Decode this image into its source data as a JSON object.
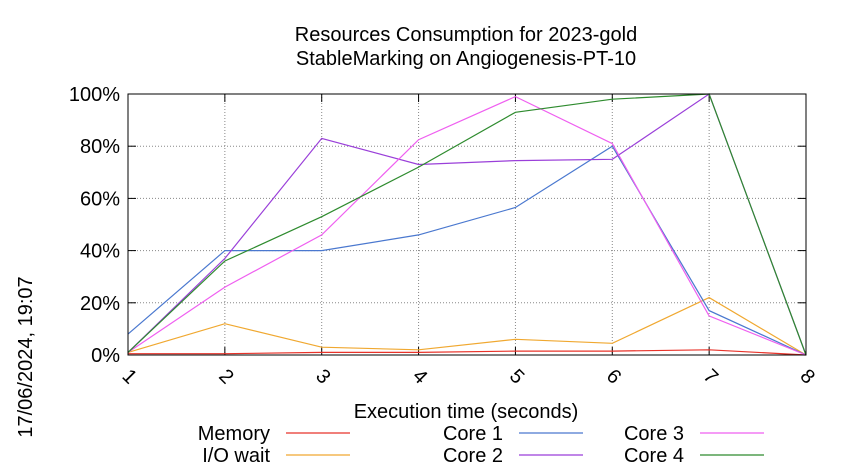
{
  "chart_data": {
    "type": "line",
    "title": "Resources Consumption for 2023-gold",
    "subtitle": "StableMarking on Angiogenesis-PT-10",
    "xlabel": "Execution time (seconds)",
    "ylabel": "",
    "side_label": "17/06/2024, 19:07",
    "x": [
      1,
      2,
      3,
      4,
      5,
      6,
      7,
      8
    ],
    "x_tick_labels": [
      "1",
      "2",
      "3",
      "4",
      "5",
      "6",
      "7",
      "8"
    ],
    "xlim": [
      1,
      8
    ],
    "ylim": [
      0,
      100
    ],
    "y_ticks": [
      0,
      20,
      40,
      60,
      80,
      100
    ],
    "y_tick_labels": [
      "0%",
      "20%",
      "40%",
      "60%",
      "80%",
      "100%"
    ],
    "grid": true,
    "legend_position": "bottom",
    "series": [
      {
        "name": "Memory",
        "color": "#e8332a",
        "values": [
          0.5,
          0.5,
          1,
          1,
          1.5,
          1.5,
          2,
          0
        ]
      },
      {
        "name": "I/O wait",
        "color": "#f0a830",
        "values": [
          1,
          12,
          3,
          2,
          6,
          4.5,
          22,
          0
        ]
      },
      {
        "name": "Core 1",
        "color": "#4a78cf",
        "values": [
          8,
          40,
          40,
          46,
          56.5,
          80,
          17,
          0
        ]
      },
      {
        "name": "Core 2",
        "color": "#9a3fd9",
        "values": [
          1,
          37,
          83,
          73,
          74.5,
          75,
          100,
          0
        ]
      },
      {
        "name": "Core 3",
        "color": "#ef5ff0",
        "values": [
          1,
          26,
          46,
          82.5,
          99,
          81,
          15,
          0
        ]
      },
      {
        "name": "Core 4",
        "color": "#2e8b2e",
        "values": [
          1,
          36,
          53,
          72,
          93,
          98,
          100,
          0
        ]
      }
    ]
  }
}
